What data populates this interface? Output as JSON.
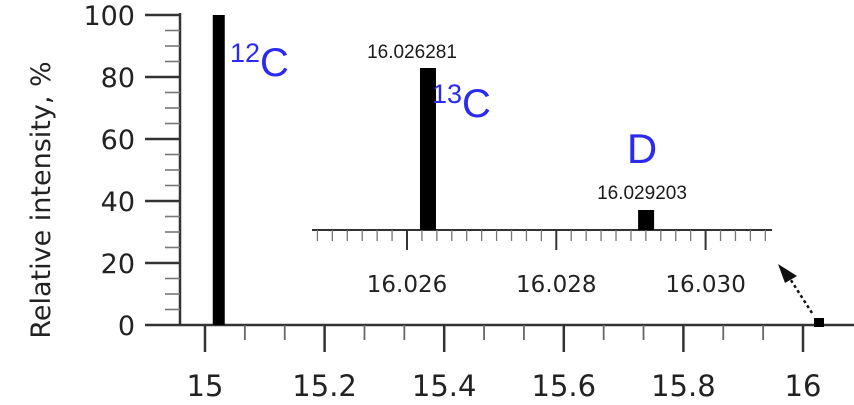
{
  "chart_data": [
    {
      "type": "bar",
      "ylabel": "Relative intensity, %",
      "xlim": [
        14.85,
        16.15
      ],
      "ylim": [
        0,
        100
      ],
      "xticks": [
        15,
        15.2,
        15.4,
        15.6,
        15.8,
        16
      ],
      "xtick_labels": [
        "15",
        "15.2",
        "15.4",
        "15.6",
        "15.8",
        "16"
      ],
      "yticks": [
        0,
        20,
        40,
        60,
        80,
        100
      ],
      "ytick_labels": [
        "0",
        "20",
        "40",
        "60",
        "80",
        "100"
      ],
      "peaks": [
        {
          "x": 15.023,
          "y": 100,
          "label": "12C",
          "label_parts": [
            "12",
            "C"
          ]
        },
        {
          "x": 16.027,
          "y": 1.2
        }
      ]
    },
    {
      "type": "bar",
      "xlim": [
        16.025,
        16.0308
      ],
      "xticks": [
        16.026,
        16.028,
        16.03
      ],
      "xtick_labels": [
        "16.026",
        "16.028",
        "16.030"
      ],
      "peaks": [
        {
          "x": 16.026281,
          "y": 83,
          "value_label": "16.026281",
          "label_parts": [
            "13",
            "C"
          ]
        },
        {
          "x": 16.029203,
          "y": 6,
          "value_label": "16.029203",
          "label": "D"
        }
      ]
    }
  ],
  "colors": {
    "isotope_label": "#2a2af0",
    "bars": "#000000",
    "axes": "#333333"
  }
}
